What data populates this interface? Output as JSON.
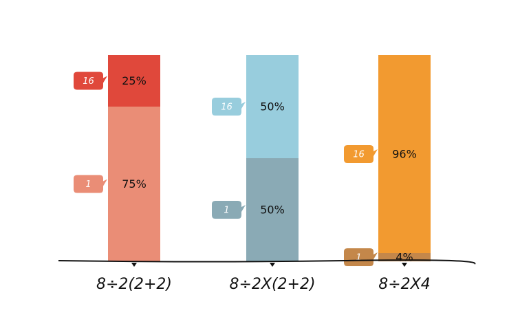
{
  "chart_data": {
    "type": "stacked-bar",
    "categories": [
      "8÷2(2+2)",
      "8÷2X(2+2)",
      "8÷2X4"
    ],
    "series": [
      {
        "name": "1",
        "colors": [
          "#ea8d76",
          "#8aaab5",
          "#c4874a"
        ],
        "values": [
          75,
          50,
          4
        ],
        "value_labels": [
          "75%",
          "50%",
          "4%"
        ]
      },
      {
        "name": "16",
        "colors": [
          "#e0483b",
          "#98cddd",
          "#f29a30"
        ],
        "values": [
          25,
          50,
          96
        ],
        "value_labels": [
          "25%",
          "50%",
          "96%"
        ]
      }
    ]
  }
}
